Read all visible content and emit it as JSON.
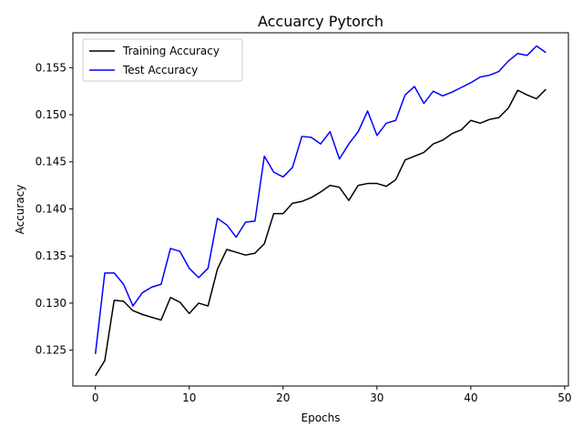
{
  "chart_data": {
    "type": "line",
    "title": "Accuarcy Pytorch",
    "xlabel": "Epochs",
    "ylabel": "Accuracy",
    "xlim": [
      -2.4,
      50.4
    ],
    "ylim": [
      0.1212,
      0.1587
    ],
    "xticks": [
      0,
      10,
      20,
      30,
      40,
      50
    ],
    "yticks": [
      0.125,
      0.13,
      0.135,
      0.14,
      0.145,
      0.15,
      0.155
    ],
    "ytick_labels": [
      "0.125",
      "0.130",
      "0.135",
      "0.140",
      "0.145",
      "0.150",
      "0.155"
    ],
    "grid": false,
    "legend_position": "top-left",
    "x": [
      0,
      1,
      2,
      3,
      4,
      5,
      6,
      7,
      8,
      9,
      10,
      11,
      12,
      13,
      14,
      15,
      16,
      17,
      18,
      19,
      20,
      21,
      22,
      23,
      24,
      25,
      26,
      27,
      28,
      29,
      30,
      31,
      32,
      33,
      34,
      35,
      36,
      37,
      38,
      39,
      40,
      41,
      42,
      43,
      44,
      45,
      46,
      47,
      48
    ],
    "series": [
      {
        "name": "Training Accuracy",
        "color": "#000000",
        "values": [
          0.1223,
          0.1239,
          0.1303,
          0.1302,
          0.1292,
          0.1288,
          0.1285,
          0.1282,
          0.1306,
          0.1301,
          0.1289,
          0.13,
          0.1297,
          0.1336,
          0.1357,
          0.1354,
          0.1351,
          0.1353,
          0.1363,
          0.1395,
          0.1395,
          0.1406,
          0.1408,
          0.1412,
          0.1418,
          0.1425,
          0.1423,
          0.1409,
          0.1425,
          0.1427,
          0.1427,
          0.1424,
          0.1431,
          0.1452,
          0.1456,
          0.146,
          0.1469,
          0.1473,
          0.148,
          0.1484,
          0.1494,
          0.1491,
          0.1495,
          0.1497,
          0.1507,
          0.1526,
          0.1521,
          0.1517,
          0.1527
        ]
      },
      {
        "name": "Test Accuracy",
        "color": "#0000ff",
        "values": [
          0.1246,
          0.1332,
          0.1332,
          0.132,
          0.1297,
          0.1311,
          0.1317,
          0.132,
          0.1358,
          0.1355,
          0.1337,
          0.1327,
          0.1337,
          0.139,
          0.1383,
          0.137,
          0.1386,
          0.1387,
          0.1456,
          0.1439,
          0.1434,
          0.1444,
          0.1477,
          0.1476,
          0.1469,
          0.1482,
          0.1453,
          0.1469,
          0.1482,
          0.1504,
          0.1478,
          0.1491,
          0.1494,
          0.1521,
          0.153,
          0.1512,
          0.1525,
          0.152,
          0.1524,
          0.1529,
          0.1534,
          0.154,
          0.1542,
          0.1546,
          0.1557,
          0.1565,
          0.1563,
          0.1573,
          0.1566
        ]
      }
    ]
  }
}
